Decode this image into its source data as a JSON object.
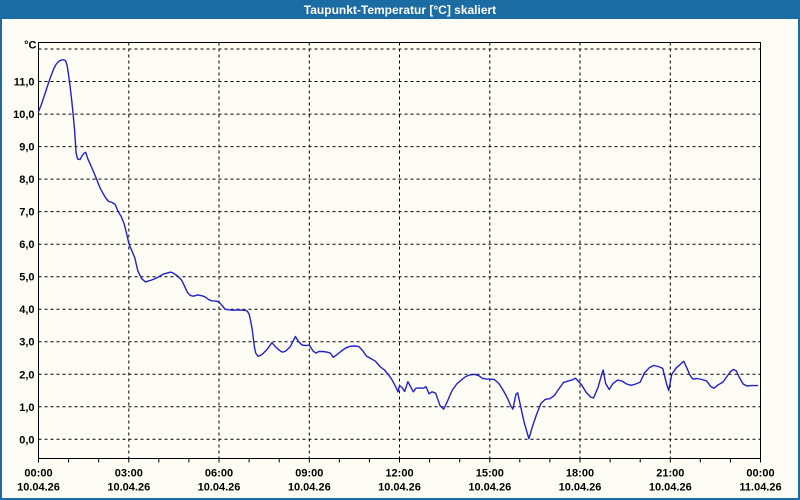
{
  "window": {
    "title": "Taupunkt-Temperatur [°C] skaliert",
    "title_bar_color": "#1c6ca4",
    "border_color": "#1c6ca4",
    "background_color": "#fdfdf6"
  },
  "chart_data": {
    "type": "line",
    "title": "Taupunkt-Temperatur [°C] skaliert",
    "y_unit_label": "°C",
    "xlabel": "",
    "ylabel": "°C",
    "ylim": [
      -0.59,
      12.2
    ],
    "xlim_hours": [
      0,
      24
    ],
    "grid": "on",
    "grid_style": "dashed",
    "grid_color": "#000000",
    "line_color": "#2222c8",
    "y_gridline_values": [
      0,
      1,
      2,
      3,
      4,
      5,
      6,
      7,
      8,
      9,
      10,
      11,
      12
    ],
    "y_tick_labels": [
      "0,0",
      "1,0",
      "2,0",
      "3,0",
      "4,0",
      "5,0",
      "6,0",
      "7,0",
      "8,0",
      "9,0",
      "10,0",
      "11,0"
    ],
    "x_major_ticks": [
      {
        "hour": 0,
        "time": "00:00",
        "date": "10.04.26"
      },
      {
        "hour": 3,
        "time": "03:00",
        "date": "10.04.26"
      },
      {
        "hour": 6,
        "time": "06:00",
        "date": "10.04.26"
      },
      {
        "hour": 9,
        "time": "09:00",
        "date": "10.04.26"
      },
      {
        "hour": 12,
        "time": "12:00",
        "date": "10.04.26"
      },
      {
        "hour": 15,
        "time": "15:00",
        "date": "10.04.26"
      },
      {
        "hour": 18,
        "time": "18:00",
        "date": "10.04.26"
      },
      {
        "hour": 21,
        "time": "21:00",
        "date": "10.04.26"
      },
      {
        "hour": 24,
        "time": "00:00",
        "date": "11.04.26"
      }
    ],
    "vertical_gridline_hours": [
      3,
      6,
      9,
      12,
      15,
      18,
      21
    ],
    "minor_tick_every_hours": 1,
    "series": [
      {
        "name": "Taupunkt-Temperatur",
        "points": [
          [
            0.0,
            10.08
          ],
          [
            0.08,
            10.25
          ],
          [
            0.17,
            10.5
          ],
          [
            0.25,
            10.72
          ],
          [
            0.33,
            10.95
          ],
          [
            0.42,
            11.18
          ],
          [
            0.5,
            11.38
          ],
          [
            0.58,
            11.52
          ],
          [
            0.67,
            11.62
          ],
          [
            0.75,
            11.66
          ],
          [
            0.83,
            11.67
          ],
          [
            0.9,
            11.64
          ],
          [
            0.95,
            11.5
          ],
          [
            1.0,
            11.2
          ],
          [
            1.05,
            10.85
          ],
          [
            1.1,
            10.45
          ],
          [
            1.15,
            10.0
          ],
          [
            1.2,
            9.5
          ],
          [
            1.25,
            8.8
          ],
          [
            1.3,
            8.62
          ],
          [
            1.38,
            8.6
          ],
          [
            1.45,
            8.72
          ],
          [
            1.52,
            8.8
          ],
          [
            1.57,
            8.82
          ],
          [
            1.65,
            8.6
          ],
          [
            1.75,
            8.4
          ],
          [
            1.85,
            8.18
          ],
          [
            1.95,
            7.95
          ],
          [
            2.05,
            7.72
          ],
          [
            2.15,
            7.55
          ],
          [
            2.25,
            7.4
          ],
          [
            2.33,
            7.31
          ],
          [
            2.45,
            7.28
          ],
          [
            2.55,
            7.22
          ],
          [
            2.65,
            7.0
          ],
          [
            2.75,
            6.85
          ],
          [
            2.85,
            6.62
          ],
          [
            2.95,
            6.25
          ],
          [
            3.0,
            6.02
          ],
          [
            3.1,
            5.8
          ],
          [
            3.2,
            5.58
          ],
          [
            3.3,
            5.18
          ],
          [
            3.42,
            4.95
          ],
          [
            3.55,
            4.84
          ],
          [
            3.7,
            4.88
          ],
          [
            3.85,
            4.93
          ],
          [
            4.0,
            5.0
          ],
          [
            4.15,
            5.08
          ],
          [
            4.3,
            5.12
          ],
          [
            4.4,
            5.14
          ],
          [
            4.5,
            5.1
          ],
          [
            4.62,
            5.02
          ],
          [
            4.75,
            4.9
          ],
          [
            4.85,
            4.72
          ],
          [
            4.95,
            4.52
          ],
          [
            5.05,
            4.42
          ],
          [
            5.15,
            4.4
          ],
          [
            5.3,
            4.44
          ],
          [
            5.45,
            4.41
          ],
          [
            5.55,
            4.37
          ],
          [
            5.65,
            4.3
          ],
          [
            5.75,
            4.26
          ],
          [
            5.9,
            4.25
          ],
          [
            6.0,
            4.22
          ],
          [
            6.1,
            4.12
          ],
          [
            6.2,
            4.0
          ],
          [
            6.35,
            3.98
          ],
          [
            6.5,
            3.97
          ],
          [
            6.65,
            3.98
          ],
          [
            6.8,
            3.97
          ],
          [
            6.93,
            3.95
          ],
          [
            7.0,
            3.85
          ],
          [
            7.05,
            3.65
          ],
          [
            7.1,
            3.4
          ],
          [
            7.17,
            2.88
          ],
          [
            7.22,
            2.65
          ],
          [
            7.3,
            2.55
          ],
          [
            7.42,
            2.6
          ],
          [
            7.6,
            2.76
          ],
          [
            7.76,
            2.97
          ],
          [
            7.87,
            2.85
          ],
          [
            8.0,
            2.74
          ],
          [
            8.1,
            2.68
          ],
          [
            8.2,
            2.7
          ],
          [
            8.37,
            2.85
          ],
          [
            8.54,
            3.16
          ],
          [
            8.65,
            3.0
          ],
          [
            8.76,
            2.9
          ],
          [
            8.9,
            2.88
          ],
          [
            9.0,
            2.9
          ],
          [
            9.12,
            2.72
          ],
          [
            9.22,
            2.65
          ],
          [
            9.32,
            2.7
          ],
          [
            9.45,
            2.7
          ],
          [
            9.58,
            2.68
          ],
          [
            9.7,
            2.65
          ],
          [
            9.8,
            2.52
          ],
          [
            9.92,
            2.6
          ],
          [
            10.05,
            2.7
          ],
          [
            10.2,
            2.8
          ],
          [
            10.35,
            2.86
          ],
          [
            10.5,
            2.87
          ],
          [
            10.65,
            2.85
          ],
          [
            10.78,
            2.72
          ],
          [
            10.9,
            2.56
          ],
          [
            11.05,
            2.48
          ],
          [
            11.2,
            2.4
          ],
          [
            11.35,
            2.24
          ],
          [
            11.5,
            2.13
          ],
          [
            11.62,
            2.0
          ],
          [
            11.75,
            1.83
          ],
          [
            11.87,
            1.62
          ],
          [
            11.95,
            1.46
          ],
          [
            12.0,
            1.65
          ],
          [
            12.08,
            1.6
          ],
          [
            12.17,
            1.47
          ],
          [
            12.28,
            1.77
          ],
          [
            12.35,
            1.65
          ],
          [
            12.46,
            1.46
          ],
          [
            12.55,
            1.57
          ],
          [
            12.67,
            1.58
          ],
          [
            12.8,
            1.57
          ],
          [
            12.88,
            1.62
          ],
          [
            12.98,
            1.4
          ],
          [
            13.08,
            1.46
          ],
          [
            13.2,
            1.42
          ],
          [
            13.35,
            1.03
          ],
          [
            13.47,
            0.93
          ],
          [
            13.6,
            1.18
          ],
          [
            13.75,
            1.5
          ],
          [
            13.9,
            1.7
          ],
          [
            14.05,
            1.82
          ],
          [
            14.2,
            1.93
          ],
          [
            14.35,
            1.98
          ],
          [
            14.5,
            2.0
          ],
          [
            14.63,
            1.96
          ],
          [
            14.75,
            1.88
          ],
          [
            14.88,
            1.85
          ],
          [
            15.0,
            1.85
          ],
          [
            15.15,
            1.84
          ],
          [
            15.3,
            1.72
          ],
          [
            15.45,
            1.5
          ],
          [
            15.58,
            1.28
          ],
          [
            15.7,
            1.02
          ],
          [
            15.77,
            0.93
          ],
          [
            15.87,
            1.38
          ],
          [
            15.93,
            1.43
          ],
          [
            16.03,
            1.0
          ],
          [
            16.15,
            0.5
          ],
          [
            16.3,
            0.02
          ],
          [
            16.42,
            0.4
          ],
          [
            16.55,
            0.75
          ],
          [
            16.7,
            1.1
          ],
          [
            16.85,
            1.23
          ],
          [
            17.0,
            1.25
          ],
          [
            17.15,
            1.35
          ],
          [
            17.3,
            1.55
          ],
          [
            17.45,
            1.75
          ],
          [
            17.6,
            1.79
          ],
          [
            17.75,
            1.83
          ],
          [
            17.85,
            1.88
          ],
          [
            17.95,
            1.78
          ],
          [
            18.05,
            1.68
          ],
          [
            18.2,
            1.45
          ],
          [
            18.35,
            1.3
          ],
          [
            18.45,
            1.27
          ],
          [
            18.6,
            1.6
          ],
          [
            18.72,
            2.0
          ],
          [
            18.77,
            2.13
          ],
          [
            18.85,
            1.72
          ],
          [
            18.97,
            1.53
          ],
          [
            19.1,
            1.72
          ],
          [
            19.25,
            1.82
          ],
          [
            19.4,
            1.79
          ],
          [
            19.55,
            1.7
          ],
          [
            19.7,
            1.66
          ],
          [
            19.85,
            1.7
          ],
          [
            20.0,
            1.76
          ],
          [
            20.15,
            2.05
          ],
          [
            20.3,
            2.2
          ],
          [
            20.45,
            2.27
          ],
          [
            20.6,
            2.24
          ],
          [
            20.75,
            2.18
          ],
          [
            20.88,
            1.7
          ],
          [
            20.95,
            1.5
          ],
          [
            21.05,
            2.0
          ],
          [
            21.2,
            2.2
          ],
          [
            21.35,
            2.32
          ],
          [
            21.45,
            2.4
          ],
          [
            21.55,
            2.2
          ],
          [
            21.65,
            1.98
          ],
          [
            21.75,
            1.85
          ],
          [
            21.9,
            1.87
          ],
          [
            22.05,
            1.84
          ],
          [
            22.2,
            1.8
          ],
          [
            22.35,
            1.62
          ],
          [
            22.45,
            1.57
          ],
          [
            22.6,
            1.68
          ],
          [
            22.75,
            1.76
          ],
          [
            22.9,
            1.95
          ],
          [
            23.0,
            2.08
          ],
          [
            23.1,
            2.15
          ],
          [
            23.2,
            2.1
          ],
          [
            23.3,
            1.9
          ],
          [
            23.42,
            1.7
          ],
          [
            23.55,
            1.64
          ],
          [
            23.7,
            1.65
          ],
          [
            23.9,
            1.65
          ]
        ]
      }
    ]
  }
}
